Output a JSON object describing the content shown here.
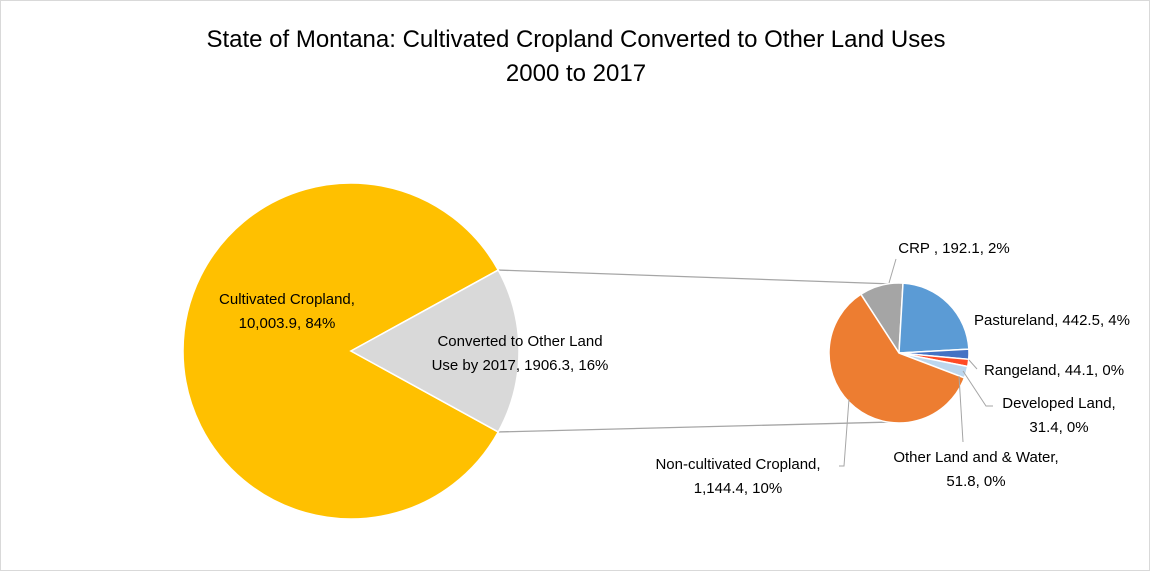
{
  "chart_data": {
    "type": "pie",
    "subtype": "pie-of-pie",
    "title_line1": "State of Montana: Cultivated Cropland Converted to Other Land Uses",
    "title_line2": "2000 to 2017",
    "primary": {
      "slices": [
        {
          "name": "Cultivated Cropland",
          "value": 10003.9,
          "percent": 84,
          "color": "#FFC000",
          "label_line1": "Cultivated Cropland,",
          "label_line2": "10,003.9, 84%"
        },
        {
          "name": "Converted to Other Land Use by 2017",
          "value": 1906.3,
          "percent": 16,
          "color": "#D9D9D9",
          "label_line1": "Converted to Other Land",
          "label_line2": "Use by 2017, 1906.3, 16%"
        }
      ]
    },
    "secondary": {
      "slices": [
        {
          "name": "CRP",
          "value": 192.1,
          "percent": 2,
          "color": "#A5A5A5",
          "label_line1": "CRP , 192.1, 2%",
          "label_line2": ""
        },
        {
          "name": "Pastureland",
          "value": 442.5,
          "percent": 4,
          "color": "#5B9BD5",
          "label_line1": "Pastureland, 442.5, 4%",
          "label_line2": ""
        },
        {
          "name": "Rangeland",
          "value": 44.1,
          "percent": 0,
          "color": "#4472C4",
          "label_line1": "Rangeland, 44.1, 0%",
          "label_line2": ""
        },
        {
          "name": "Developed Land",
          "value": 31.4,
          "percent": 0,
          "color": "#FF4B26",
          "label_line1": "Developed Land,",
          "label_line2": "31.4, 0%"
        },
        {
          "name": "Other Land and & Water",
          "value": 51.8,
          "percent": 0,
          "color": "#BDD7EE",
          "label_line1": "Other Land and & Water,",
          "label_line2": "51.8, 0%"
        },
        {
          "name": "Non-cultivated Cropland",
          "value": 1144.4,
          "percent": 10,
          "color": "#ED7D31",
          "label_line1": "Non-cultivated Cropland,",
          "label_line2": "1,144.4, 10%"
        }
      ]
    },
    "legend": "none",
    "connector_color": "#A6A6A6"
  }
}
